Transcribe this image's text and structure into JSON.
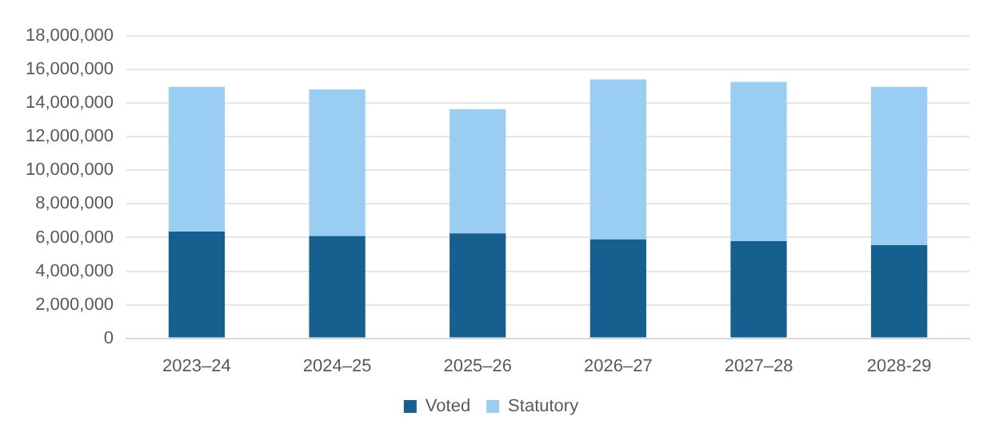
{
  "chart_data": {
    "type": "bar",
    "stacked": true,
    "categories": [
      "2023–24",
      "2024–25",
      "2025–26",
      "2026–27",
      "2027–28",
      "2028-29"
    ],
    "series": [
      {
        "name": "Voted",
        "color": "#15608f",
        "values": [
          6350000,
          6090000,
          6250000,
          5890000,
          5790000,
          5550000
        ]
      },
      {
        "name": "Statutory",
        "color": "#99cdf1",
        "values": [
          8630000,
          8730000,
          7400000,
          9530000,
          9490000,
          9430000
        ]
      }
    ],
    "ylim": [
      0,
      18000000
    ],
    "yticks": [
      {
        "value": 0,
        "label": "0"
      },
      {
        "value": 2000000,
        "label": "2,000,000"
      },
      {
        "value": 4000000,
        "label": "4,000,000"
      },
      {
        "value": 6000000,
        "label": "6,000,000"
      },
      {
        "value": 8000000,
        "label": "8,000,000"
      },
      {
        "value": 10000000,
        "label": "10,000,000"
      },
      {
        "value": 12000000,
        "label": "12,000,000"
      },
      {
        "value": 14000000,
        "label": "14,000,000"
      },
      {
        "value": 16000000,
        "label": "16,000,000"
      },
      {
        "value": 18000000,
        "label": "18,000,000"
      }
    ],
    "grid": "y",
    "legend": "bottom"
  }
}
